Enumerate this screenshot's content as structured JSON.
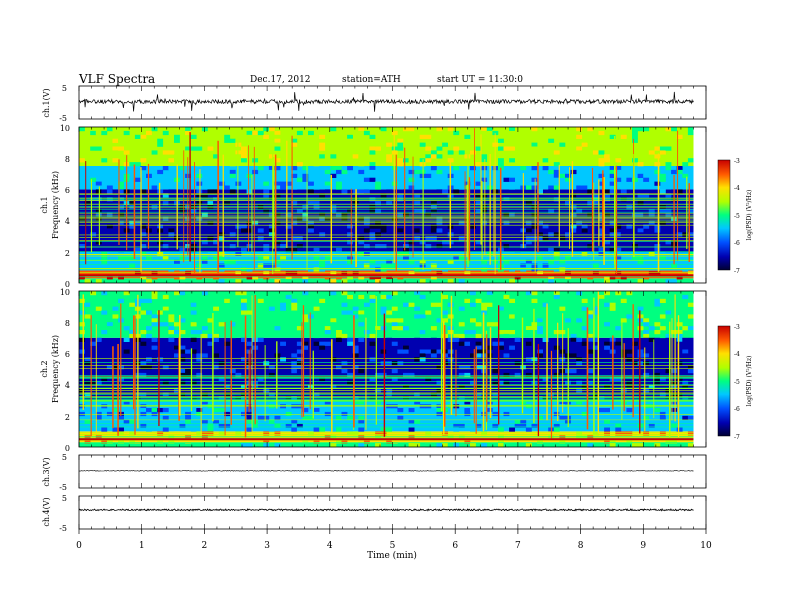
{
  "header": {
    "title": "VLF  Spectra",
    "date": "Dec.17, 2012",
    "station": "station=ATH",
    "start_ut": "start  UT  =    11:30:0"
  },
  "chart_data": {
    "type": "heatmap",
    "x_axis": {
      "label": "Time  (min)",
      "range": [
        0,
        10
      ],
      "ticks": [
        "0",
        "1",
        "2",
        "3",
        "4",
        "5",
        "6",
        "7",
        "8",
        "9",
        "10"
      ],
      "data_end_min": 9.8
    },
    "panels": [
      {
        "id": "ch1_waveform",
        "type": "line",
        "ylabel": "ch.1(V)",
        "ylim": [
          -5,
          5
        ],
        "ticks": [
          "5",
          "-5"
        ],
        "baseline": 0.3,
        "noise_amplitude": 0.6,
        "spike_amplitude": 3
      },
      {
        "id": "ch1_spectrogram",
        "type": "heatmap",
        "ylabel_top": "ch.1",
        "ylabel": "Frequency  (kHz)",
        "ylim": [
          0,
          10
        ],
        "ticks": [
          "0",
          "2",
          "4",
          "6",
          "8",
          "10"
        ],
        "colorbar": {
          "label": "log(PSD) (V²/Hz)",
          "range": [
            -7,
            -3
          ],
          "ticks": [
            "-3",
            "-4",
            "-5",
            "-6",
            "-7"
          ]
        },
        "bands_kHz": [
          {
            "range": [
              0.0,
              0.3
            ],
            "level": -4.8
          },
          {
            "range": [
              0.3,
              0.8
            ],
            "level": -3.6
          },
          {
            "range": [
              0.8,
              2.0
            ],
            "level": -5.3
          },
          {
            "range": [
              2.0,
              6.0
            ],
            "level": -6.4
          },
          {
            "range": [
              6.0,
              7.5
            ],
            "level": -5.6
          },
          {
            "range": [
              7.5,
              10.0
            ],
            "level": -4.5
          }
        ]
      },
      {
        "id": "ch2_spectrogram",
        "type": "heatmap",
        "ylabel_top": "ch.2",
        "ylabel": "Frequency  (kHz)",
        "ylim": [
          0,
          10
        ],
        "ticks": [
          "0",
          "2",
          "4",
          "6",
          "8",
          "10"
        ],
        "colorbar": {
          "label": "log(PSD) (V²/Hz)",
          "range": [
            -7,
            -3
          ],
          "ticks": [
            "-3",
            "-4",
            "-5",
            "-6",
            "-7"
          ]
        },
        "bands_kHz": [
          {
            "range": [
              0.0,
              0.3
            ],
            "level": -5.0
          },
          {
            "range": [
              0.3,
              1.0
            ],
            "level": -4.0
          },
          {
            "range": [
              1.0,
              3.0
            ],
            "level": -5.6
          },
          {
            "range": [
              3.0,
              7.0
            ],
            "level": -6.4
          },
          {
            "range": [
              7.0,
              10.0
            ],
            "level": -5.0
          }
        ]
      },
      {
        "id": "ch3_waveform",
        "type": "line",
        "ylabel": "ch.3(V)",
        "ylim": [
          -5,
          5
        ],
        "ticks": [
          "5",
          "-5"
        ],
        "baseline": 0.2,
        "noise_amplitude": 0.1
      },
      {
        "id": "ch4_waveform",
        "type": "line",
        "ylabel": "ch.4(V)",
        "ylim": [
          -5,
          5
        ],
        "ticks": [
          "5",
          "-5"
        ],
        "baseline": 0.8,
        "noise_amplitude": 0.25
      }
    ]
  },
  "colors": {
    "axis": "#000000",
    "waveform": "#000000",
    "colormap": [
      "#000033",
      "#0000b0",
      "#0050ff",
      "#00c8ff",
      "#00ff80",
      "#b0ff00",
      "#ffe000",
      "#ff5a00",
      "#c80000"
    ]
  }
}
